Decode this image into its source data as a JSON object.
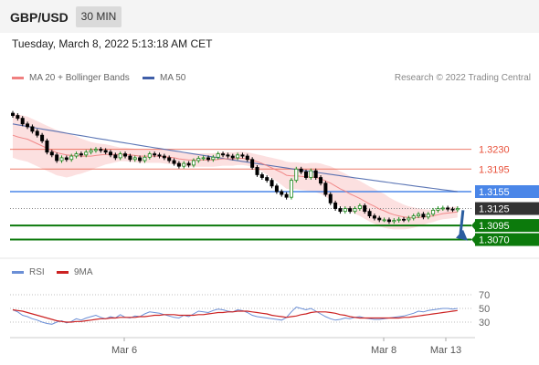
{
  "header": {
    "symbol": "GBP/USD",
    "timeframe": "30 MIN"
  },
  "timestamp": "Tuesday, March 8, 2022 5:13:18 AM CET",
  "legend": {
    "ma20": "MA 20 + Bollinger Bands",
    "ma50": "MA 50"
  },
  "copyright": "Research © 2022 Trading Central",
  "rsi_legend": {
    "rsi": "RSI",
    "ma9": "9MA"
  },
  "colors": {
    "bullish": "#1f8a1f",
    "bearish": "#000000",
    "ma20": "#f08080",
    "bb_fill": "#fbdada",
    "ma50": "#3f5ea8",
    "resistance": "#e8503a",
    "pivot": "#4a86e8",
    "last_price": "#333333",
    "support": "#0c7a0c",
    "arrow": "#2a5d9f",
    "rsi": "#6b8fd6",
    "rsi_ma": "#cc2222"
  },
  "chart_data": [
    {
      "type": "candlestick",
      "ylim": [
        1.3045,
        1.332
      ],
      "x_ticks": [
        "Mar 6",
        "Mar 8",
        "Mar 13"
      ],
      "levels": [
        {
          "value": 1.323,
          "label": "1.3230",
          "role": "resistance"
        },
        {
          "value": 1.3195,
          "label": "1.3195",
          "role": "resistance"
        },
        {
          "value": 1.3155,
          "label": "1.3155",
          "role": "pivot"
        },
        {
          "value": 1.3125,
          "label": "1.3125",
          "role": "last"
        },
        {
          "value": 1.3095,
          "label": "1.3095",
          "role": "support"
        },
        {
          "value": 1.307,
          "label": "1.3070",
          "role": "support"
        }
      ],
      "series": [
        {
          "name": "MA 20 + Bollinger Bands"
        },
        {
          "name": "MA 50"
        }
      ],
      "closes": [
        1.329,
        1.3285,
        1.3275,
        1.327,
        1.3262,
        1.3255,
        1.3245,
        1.3225,
        1.322,
        1.321,
        1.3215,
        1.3212,
        1.3218,
        1.3222,
        1.322,
        1.3225,
        1.3228,
        1.323,
        1.3228,
        1.3225,
        1.322,
        1.3215,
        1.3222,
        1.3218,
        1.3212,
        1.3215,
        1.321,
        1.3216,
        1.3222,
        1.322,
        1.3218,
        1.3215,
        1.321,
        1.3205,
        1.32,
        1.3205,
        1.3202,
        1.321,
        1.3214,
        1.3215,
        1.3212,
        1.3216,
        1.3222,
        1.322,
        1.3218,
        1.3215,
        1.322,
        1.3218,
        1.3212,
        1.3198,
        1.3185,
        1.318,
        1.3175,
        1.3165,
        1.3155,
        1.315,
        1.3145,
        1.3175,
        1.3195,
        1.319,
        1.318,
        1.3192,
        1.318,
        1.317,
        1.315,
        1.3135,
        1.3125,
        1.312,
        1.3125,
        1.312,
        1.3125,
        1.313,
        1.312,
        1.3112,
        1.3108,
        1.3105,
        1.3105,
        1.3102,
        1.3104,
        1.3106,
        1.3105,
        1.3108,
        1.3112,
        1.3115,
        1.311,
        1.3115,
        1.3122,
        1.3125,
        1.3126,
        1.3124,
        1.3123,
        1.3125
      ],
      "ma20": [
        1.3255,
        1.3252,
        1.325,
        1.3248,
        1.3244,
        1.324,
        1.3236,
        1.3232,
        1.3228,
        1.3224,
        1.3222,
        1.322,
        1.3219,
        1.3219,
        1.3218,
        1.3218,
        1.3218,
        1.3219,
        1.322,
        1.3221,
        1.3221,
        1.3221,
        1.3221,
        1.3221,
        1.322,
        1.3219,
        1.3218,
        1.3218,
        1.3218,
        1.3218,
        1.3218,
        1.3217,
        1.3216,
        1.3215,
        1.3213,
        1.3212,
        1.3211,
        1.3211,
        1.3211,
        1.3211,
        1.3211,
        1.3211,
        1.3212,
        1.3213,
        1.3213,
        1.3213,
        1.3214,
        1.3214,
        1.3213,
        1.3211,
        1.3208,
        1.3205,
        1.3201,
        1.3197,
        1.3193,
        1.3189,
        1.3184,
        1.3183,
        1.3183,
        1.3182,
        1.3181,
        1.3181,
        1.318,
        1.3178,
        1.3174,
        1.317,
        1.3165,
        1.316,
        1.3156,
        1.3151,
        1.3147,
        1.3143,
        1.3138,
        1.3133,
        1.3129,
        1.3124,
        1.3121,
        1.3117,
        1.3114,
        1.3112,
        1.311,
        1.3109,
        1.3109,
        1.3109,
        1.311,
        1.3111,
        1.3112,
        1.3114,
        1.3116,
        1.3117,
        1.3118,
        1.3119
      ],
      "bb_width": [
        0.004,
        0.004,
        0.004,
        0.004,
        0.004,
        0.004,
        0.004,
        0.004,
        0.004,
        0.004,
        0.004,
        0.004,
        0.0037,
        0.0034,
        0.0031,
        0.0028,
        0.0025,
        0.0022,
        0.002,
        0.0018,
        0.0016,
        0.0014,
        0.0012,
        0.0012,
        0.0012,
        0.0012,
        0.0012,
        0.0012,
        0.0012,
        0.0012,
        0.0012,
        0.0012,
        0.0012,
        0.0012,
        0.0012,
        0.0012,
        0.0012,
        0.0012,
        0.0012,
        0.0012,
        0.0012,
        0.0012,
        0.0012,
        0.0012,
        0.0012,
        0.0012,
        0.0012,
        0.0012,
        0.0012,
        0.0012,
        0.0013,
        0.0014,
        0.0016,
        0.0018,
        0.002,
        0.0022,
        0.0024,
        0.0024,
        0.0024,
        0.0024,
        0.0024,
        0.0025,
        0.0026,
        0.0027,
        0.0028,
        0.003,
        0.0031,
        0.0031,
        0.0031,
        0.0031,
        0.0031,
        0.0031,
        0.0031,
        0.0031,
        0.0031,
        0.0031,
        0.003,
        0.0028,
        0.0026,
        0.0024,
        0.0022,
        0.002,
        0.0018,
        0.0016,
        0.0014,
        0.0012,
        0.0011,
        0.001,
        0.001,
        0.001,
        0.001,
        0.001
      ],
      "ma50_start": 1.3275,
      "ma50_end": 1.3155
    },
    {
      "type": "line",
      "title": "RSI",
      "ylim": [
        10,
        90
      ],
      "y_ticks": [
        70,
        50,
        30
      ],
      "series": [
        {
          "name": "RSI",
          "values": [
            48,
            45,
            40,
            38,
            35,
            33,
            30,
            28,
            27,
            30,
            32,
            29,
            31,
            35,
            33,
            36,
            38,
            40,
            37,
            35,
            38,
            36,
            41,
            37,
            36,
            39,
            38,
            42,
            45,
            44,
            43,
            41,
            39,
            37,
            36,
            40,
            38,
            42,
            46,
            45,
            44,
            47,
            49,
            48,
            46,
            45,
            48,
            47,
            44,
            40,
            38,
            37,
            36,
            35,
            34,
            33,
            37,
            45,
            52,
            50,
            48,
            50,
            46,
            42,
            38,
            35,
            33,
            34,
            36,
            35,
            37,
            38,
            36,
            35,
            34,
            34,
            35,
            36,
            37,
            38,
            39,
            41,
            43,
            46,
            45,
            47,
            48,
            49,
            50,
            50,
            49,
            50
          ]
        },
        {
          "name": "9MA",
          "values": [
            48,
            47,
            46,
            44,
            42,
            40,
            38,
            36,
            34,
            32,
            31,
            30,
            30,
            31,
            31,
            32,
            33,
            34,
            35,
            35,
            36,
            36,
            37,
            37,
            37,
            37,
            38,
            38,
            39,
            40,
            40,
            41,
            41,
            41,
            40,
            40,
            40,
            40,
            41,
            41,
            42,
            43,
            44,
            44,
            45,
            45,
            46,
            46,
            46,
            45,
            44,
            43,
            42,
            40,
            39,
            38,
            37,
            38,
            39,
            41,
            42,
            44,
            45,
            45,
            45,
            44,
            43,
            41,
            40,
            38,
            37,
            36,
            36,
            36,
            36,
            36,
            36,
            36,
            36,
            36,
            37,
            37,
            38,
            39,
            40,
            41,
            42,
            43,
            44,
            45,
            46,
            47
          ]
        }
      ]
    }
  ]
}
